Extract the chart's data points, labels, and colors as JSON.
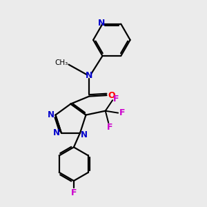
{
  "bg_color": "#ebebeb",
  "bond_color": "#000000",
  "nitrogen_color": "#0000cc",
  "oxygen_color": "#ff0000",
  "fluorine_color": "#cc00cc",
  "line_width": 1.6,
  "figsize": [
    3.0,
    3.0
  ],
  "dpi": 100,
  "xlim": [
    0,
    10
  ],
  "ylim": [
    0,
    10
  ]
}
